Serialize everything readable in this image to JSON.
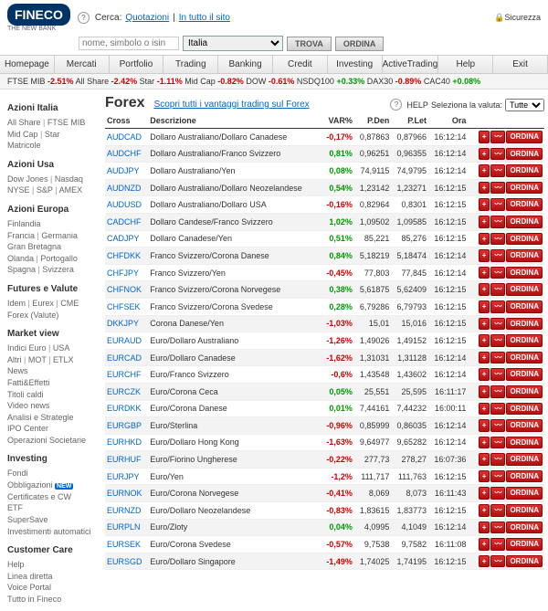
{
  "header": {
    "logo": "FINECO",
    "logo_sub": "THE NEW BANK",
    "search_label": "Cerca:",
    "search_quot": "Quotazioni",
    "search_all": "In tutto il sito",
    "search_placeholder": "nome, simbolo o isin",
    "country": "Italia",
    "btn_find": "TROVA",
    "btn_order": "ORDINA",
    "security": "Sicurezza"
  },
  "nav": [
    "Homepage",
    "Mercati",
    "Portfolio",
    "Trading",
    "Banking",
    "Credit",
    "Investing",
    "ActiveTrading",
    "Help",
    "Exit"
  ],
  "ticker": [
    {
      "l": "FTSE MIB",
      "v": "-2.51%",
      "c": "neg"
    },
    {
      "l": "All Share",
      "v": "-2.42%",
      "c": "neg"
    },
    {
      "l": "Star",
      "v": "-1.11%",
      "c": "neg"
    },
    {
      "l": "Mid Cap",
      "v": "-0.82%",
      "c": "neg"
    },
    {
      "l": "DOW",
      "v": "-0.61%",
      "c": "neg"
    },
    {
      "l": "NSDQ100",
      "v": "+0.33%",
      "c": "pos"
    },
    {
      "l": "DAX30",
      "v": "-0.89%",
      "c": "neg"
    },
    {
      "l": "CAC40",
      "v": "+0.08%",
      "c": "pos"
    }
  ],
  "sidebar": [
    {
      "h": "Azioni Italia",
      "items": [
        "All Share | FTSE MIB",
        "Mid Cap | Star",
        "Matricole"
      ]
    },
    {
      "h": "Azioni Usa",
      "items": [
        "Dow Jones | Nasdaq",
        "NYSE | S&P | AMEX"
      ]
    },
    {
      "h": "Azioni Europa",
      "items": [
        "Finlandia",
        "Francia | Germania",
        "Gran Bretagna",
        "Olanda | Portogallo",
        "Spagna | Svizzera"
      ]
    },
    {
      "h": "Futures e Valute",
      "items": [
        "Idem | Eurex | CME",
        "Forex (Valute)"
      ]
    },
    {
      "h": "Market view",
      "items": [
        "Indici Euro | USA",
        "Altri | MOT | ETLX"
      ],
      "extra": [
        "News",
        "Fatti&Effetti",
        "Titoli caldi",
        "Video news",
        "Analisi e Strategie",
        "IPO Center",
        "Operazioni Societarie"
      ]
    },
    {
      "h": "Investing",
      "items": [
        "Fondi",
        "Obbligazioni",
        "Certificates e CW",
        "ETF",
        "SuperSave",
        "Investimenti automatici"
      ],
      "new_at": 1
    },
    {
      "h": "Customer Care",
      "items": [
        "Help",
        "Linea diretta",
        "Voice Portal",
        "Tutto in Fineco"
      ]
    }
  ],
  "forex": {
    "title": "Forex",
    "link": "Scopri tutti i vantaggi trading sul Forex",
    "help": "HELP",
    "sel_label": "Seleziona la valuta:",
    "sel_val": "Tutte",
    "cols": [
      "Cross",
      "Descrizione",
      "VAR%",
      "P.Den",
      "P.Let",
      "Ora"
    ],
    "order_btn": "ORDINA",
    "rows": [
      {
        "c": "AUDCAD",
        "d": "Dollaro Australiano/Dollaro Canadese",
        "v": "-0,17%",
        "s": "neg",
        "pd": "0,87863",
        "pl": "0,87966",
        "t": "16:12:14"
      },
      {
        "c": "AUDCHF",
        "d": "Dollaro Australiano/Franco Svizzero",
        "v": "0,81%",
        "s": "pos",
        "pd": "0,96251",
        "pl": "0,96355",
        "t": "16:12:14"
      },
      {
        "c": "AUDJPY",
        "d": "Dollaro Australiano/Yen",
        "v": "0,08%",
        "s": "pos",
        "pd": "74,9115",
        "pl": "74,9795",
        "t": "16:12:14"
      },
      {
        "c": "AUDNZD",
        "d": "Dollaro Australiano/Dollaro Neozelandese",
        "v": "0,54%",
        "s": "pos",
        "pd": "1,23142",
        "pl": "1,23271",
        "t": "16:12:15"
      },
      {
        "c": "AUDUSD",
        "d": "Dollaro Australiano/Dollaro USA",
        "v": "-0,16%",
        "s": "neg",
        "pd": "0,82964",
        "pl": "0,8301",
        "t": "16:12:15"
      },
      {
        "c": "CADCHF",
        "d": "Dollaro Candese/Franco Svizzero",
        "v": "1,02%",
        "s": "pos",
        "pd": "1,09502",
        "pl": "1,09585",
        "t": "16:12:15"
      },
      {
        "c": "CADJPY",
        "d": "Dollaro Canadese/Yen",
        "v": "0,51%",
        "s": "pos",
        "pd": "85,221",
        "pl": "85,276",
        "t": "16:12:15"
      },
      {
        "c": "CHFDKK",
        "d": "Franco Svizzero/Corona Danese",
        "v": "0,84%",
        "s": "pos",
        "pd": "5,18219",
        "pl": "5,18474",
        "t": "16:12:14"
      },
      {
        "c": "CHFJPY",
        "d": "Franco Svizzero/Yen",
        "v": "-0,45%",
        "s": "neg",
        "pd": "77,803",
        "pl": "77,845",
        "t": "16:12:14"
      },
      {
        "c": "CHFNOK",
        "d": "Franco Svizzero/Corona Norvegese",
        "v": "0,38%",
        "s": "pos",
        "pd": "5,61875",
        "pl": "5,62409",
        "t": "16:12:15"
      },
      {
        "c": "CHFSEK",
        "d": "Franco Svizzero/Corona Svedese",
        "v": "0,28%",
        "s": "pos",
        "pd": "6,79286",
        "pl": "6,79793",
        "t": "16:12:15"
      },
      {
        "c": "DKKJPY",
        "d": "Corona Danese/Yen",
        "v": "-1,03%",
        "s": "neg",
        "pd": "15,01",
        "pl": "15,016",
        "t": "16:12:15"
      },
      {
        "c": "EURAUD",
        "d": "Euro/Dollaro Australiano",
        "v": "-1,26%",
        "s": "neg",
        "pd": "1,49026",
        "pl": "1,49152",
        "t": "16:12:15"
      },
      {
        "c": "EURCAD",
        "d": "Euro/Dollaro Canadese",
        "v": "-1,62%",
        "s": "neg",
        "pd": "1,31031",
        "pl": "1,31128",
        "t": "16:12:14"
      },
      {
        "c": "EURCHF",
        "d": "Euro/Franco Svizzero",
        "v": "-0,6%",
        "s": "neg",
        "pd": "1,43548",
        "pl": "1,43602",
        "t": "16:12:14"
      },
      {
        "c": "EURCZK",
        "d": "Euro/Corona Ceca",
        "v": "0,05%",
        "s": "pos",
        "pd": "25,551",
        "pl": "25,595",
        "t": "16:11:17"
      },
      {
        "c": "EURDKK",
        "d": "Euro/Corona Danese",
        "v": "0,01%",
        "s": "pos",
        "pd": "7,44161",
        "pl": "7,44232",
        "t": "16:00:11"
      },
      {
        "c": "EURGBP",
        "d": "Euro/Sterlina",
        "v": "-0,96%",
        "s": "neg",
        "pd": "0,85999",
        "pl": "0,86035",
        "t": "16:12:14"
      },
      {
        "c": "EURHKD",
        "d": "Euro/Dollaro Hong Kong",
        "v": "-1,63%",
        "s": "neg",
        "pd": "9,64977",
        "pl": "9,65282",
        "t": "16:12:14"
      },
      {
        "c": "EURHUF",
        "d": "Euro/Fiorino Ungherese",
        "v": "-0,22%",
        "s": "neg",
        "pd": "277,73",
        "pl": "278,27",
        "t": "16:07:36"
      },
      {
        "c": "EURJPY",
        "d": "Euro/Yen",
        "v": "-1,2%",
        "s": "neg",
        "pd": "111,717",
        "pl": "111,763",
        "t": "16:12:15"
      },
      {
        "c": "EURNOK",
        "d": "Euro/Corona Norvegese",
        "v": "-0,41%",
        "s": "neg",
        "pd": "8,069",
        "pl": "8,073",
        "t": "16:11:43"
      },
      {
        "c": "EURNZD",
        "d": "Euro/Dollaro Neozelandese",
        "v": "-0,83%",
        "s": "neg",
        "pd": "1,83615",
        "pl": "1,83773",
        "t": "16:12:15"
      },
      {
        "c": "EURPLN",
        "d": "Euro/Zloty",
        "v": "0,04%",
        "s": "pos",
        "pd": "4,0995",
        "pl": "4,1049",
        "t": "16:12:14"
      },
      {
        "c": "EURSEK",
        "d": "Euro/Corona Svedese",
        "v": "-0,57%",
        "s": "neg",
        "pd": "9,7538",
        "pl": "9,7582",
        "t": "16:11:08"
      },
      {
        "c": "EURSGD",
        "d": "Euro/Dollaro Singapore",
        "v": "-1,49%",
        "s": "neg",
        "pd": "1,74025",
        "pl": "1,74195",
        "t": "16:12:15"
      }
    ]
  }
}
